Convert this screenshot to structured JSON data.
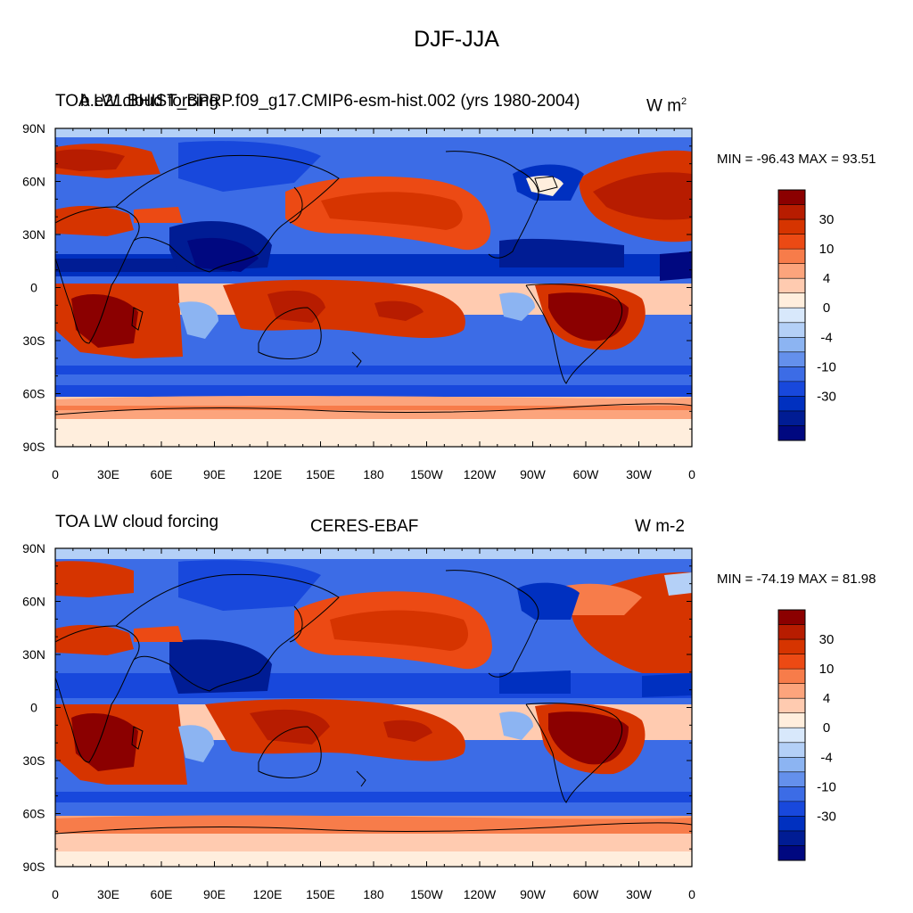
{
  "figure": {
    "title": "DJF-JJA"
  },
  "panels": [
    {
      "title_left": "TOA LW cloud forcing",
      "title_center": "b.e21.BHIST_BPRP.f09_g17.CMIP6-esm-hist.002 (yrs 1980-2004)",
      "units": "W m",
      "units_sup": "2",
      "min_label": "MIN = -96.43",
      "max_label": "MAX =  93.51"
    },
    {
      "title_left": "TOA LW cloud forcing",
      "title_center": "CERES-EBAF",
      "units": "W m-2",
      "units_sup": "",
      "min_label": "MIN = -74.19",
      "max_label": "MAX =  81.98"
    }
  ],
  "axes": {
    "lon_ticks": [
      "0",
      "30E",
      "60E",
      "90E",
      "120E",
      "150E",
      "180",
      "150W",
      "120W",
      "90W",
      "60W",
      "30W",
      "0"
    ],
    "lat_ticks": [
      "90N",
      "60N",
      "30N",
      "0",
      "30S",
      "60S",
      "90S"
    ]
  },
  "colorbar": {
    "labels": [
      "30",
      "10",
      "4",
      "0",
      "-4",
      "-10",
      "-30"
    ],
    "colors": [
      "#8b0000",
      "#b71c00",
      "#d63400",
      "#ec4a14",
      "#f77c4a",
      "#fca47c",
      "#ffcbb0",
      "#ffeedd",
      "#d8e8fb",
      "#b4d0f7",
      "#8cb4f2",
      "#6490ec",
      "#3c6ce6",
      "#1848dc",
      "#0030c0",
      "#001c94",
      "#000880"
    ]
  },
  "chart_data": {
    "type": "heatmap",
    "variable": "TOA LW cloud forcing",
    "season_difference": "DJF-JJA",
    "x_axis": {
      "ticks": [
        "0",
        "30E",
        "60E",
        "90E",
        "120E",
        "150E",
        "180",
        "150W",
        "120W",
        "90W",
        "60W",
        "30W",
        "0"
      ],
      "range": [
        0,
        360
      ]
    },
    "y_axis": {
      "ticks": [
        "90N",
        "60N",
        "30N",
        "0",
        "30S",
        "60S",
        "90S"
      ],
      "range": [
        -90,
        90
      ]
    },
    "contour_levels_labeled": [
      30,
      10,
      4,
      0,
      -4,
      -10,
      -30
    ],
    "series": [
      {
        "name": "b.e21.BHIST_BPRP.f09_g17.CMIP6-esm-hist.002 (yrs 1980-2004)",
        "min": -96.43,
        "max": 93.51
      },
      {
        "name": "CERES-EBAF",
        "min": -74.19,
        "max": 81.98
      }
    ]
  }
}
